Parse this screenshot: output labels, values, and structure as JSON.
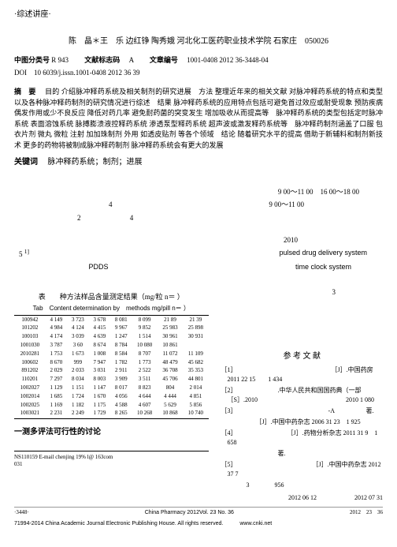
{
  "header_tag": "·综述讲座·",
  "title_authors": "陈　晶＊王　乐 边红铮 陶秀娥 河北化工医药职业技术学院 石家庄　050026",
  "classification": {
    "label_cn": "中图分类号",
    "value_cn": "R 943",
    "label_doc": "文献标志码",
    "value_doc": "A",
    "label_art": "文章编号",
    "value_art": "1001-0408 2012 36-3448-04"
  },
  "doi": "DOI　10 6039/j.issn.1001-0408 2012 36 39",
  "abstract": {
    "label": "摘　要",
    "content": "目的 介绍脉冲释药系统及相关制剂的研究进展　方法 整理近年来的相关文献 对脉冲释药系统的特点和类型以及各种脉冲释药制剂的研究情况进行综述　结果 脉冲释药系统的应用特点包括可避免首过效应或耐受现象 预防疾病偶发作用或少不良反应 降低对药几率 避免耐药菌的突变发生 增加吸收从而提高等　脉冲释药系统的类型包括定时脉冲系统 表面溶蚀系统 脉搏膨溃液控释药系统 渗透泵型释药系统 超声波或激发释药系统等　脉冲释药制剂涵盖了口服 包衣片剂 微丸 微粒 注射 加加珠制剂 外用 如透皮贴剂 等各个领域　结论 随着研究水平的提高 借助于新辅料和制剂新技术 更多的药物将被制成脉冲释药制剂 脉冲释药系统会有更大的发展"
  },
  "keywords": {
    "label": "关键词",
    "content": "脉冲释药系统；制剂；进展"
  },
  "scattered_right": {
    "line1": "9 00～11 00　16 00～18 00",
    "line2": "9 00～11 00",
    "num1": "4",
    "num2": "2",
    "num3": "4",
    "num4": "5",
    "year": "2010",
    "eng1": "pulsed drug delivery system",
    "eng2": "time clock system",
    "abbr": "PDDS",
    "pos_pdds": "PDDS"
  },
  "table": {
    "caption_cn": "表　　种方法样品含量测定结果（mg/粒 n＝ ）",
    "caption_en": "Tab　Content determination by　methods mg/pill n＝ ）",
    "rows": [
      [
        "100942",
        "4 149",
        "3 723",
        "3 678",
        "8 081",
        "8 099",
        "21 89",
        "21 39"
      ],
      [
        "101202",
        "4 984",
        "4 124",
        "4 415",
        "9 967",
        "9 852",
        "25 983",
        "25 898"
      ],
      [
        "100103",
        "4 174",
        "3 039",
        "4 639",
        "1 247",
        "1 514",
        "30 961",
        "30 931"
      ],
      [
        "1001030",
        "3 787",
        "3 60",
        "8 674",
        "8 784",
        "10 080",
        "10 861",
        ""
      ],
      [
        "2010281",
        "1 753",
        "1 673",
        "1 008",
        "8 584",
        "8 707",
        "11 072",
        "11 109"
      ],
      [
        "100602",
        "8 670",
        "999",
        "7 947",
        "1 782",
        "1 773",
        "48 479",
        "45 682"
      ],
      [
        "891202",
        "2 029",
        "2 033",
        "3 031",
        "2 911",
        "2 522",
        "36 708",
        "35 353"
      ],
      [
        "110201",
        "7 297",
        "8 034",
        "8 003",
        "3 909",
        "3 511",
        "45 706",
        "44 801"
      ],
      [
        "1002027",
        "1 129",
        "1 151",
        "1 147",
        "8 017",
        "8 823",
        "804",
        "2 014"
      ],
      [
        "1002014",
        "1 685",
        "1 724",
        "1 670",
        "4 056",
        "4 644",
        "4 444",
        "4 851"
      ],
      [
        "1002025",
        "1 169",
        "1 182",
        "1 175",
        "4 588",
        "4 607",
        "5 629",
        "5 856"
      ],
      [
        "1003021",
        "2 231",
        "2 249",
        "1 729",
        "8 265",
        "10 268",
        "10 868",
        "10 740"
      ]
    ]
  },
  "section": {
    "num": "",
    "title": "一测多评法可行性的讨论"
  },
  "right_col_num": "3",
  "references": {
    "head": "参 考 文 献",
    "items": [
      "［1］　　　　　　　　　　　　　　　　［J］.中国药房 2011 22 15　　1 434",
      "［2］　　　　　　　.中华人民共和国国药典（一部 ［S］.2010　　　　　　　　　　　　　　2010 1 080",
      "［3］　　　　　　　　　　　　　　　-A　　　　　著.",
      "　　　　　　［J］.中国中药杂志 2006 31 23　1 925",
      "［4］　　　　　　　　　［J］.药物分析杂志 2011 31 9　1 658",
      "　　　　　　　　　著.",
      "［5］　　　　　　　　　　　　　［J］.中国中药杂志 2012 37 7",
      "　　　　3　　　　956"
    ],
    "date": "2012 06 12　　　　　　2012 07 31"
  },
  "footnote": "NS110159 E-mail chenjing 19% l@ 163com　　　　　　　　　　　　　　　　　　　031",
  "footer": {
    "left": "·3448·",
    "center": "China Pharmacy 2012Vol. 23 No. 36",
    "right": "2012　23　36"
  },
  "di": "71994-2014 China Academic Journal Electronic Publishing House. All rights reserved.　　　www.cnki.net",
  "style": {
    "bg": "#ffffff",
    "text": "#000000"
  }
}
